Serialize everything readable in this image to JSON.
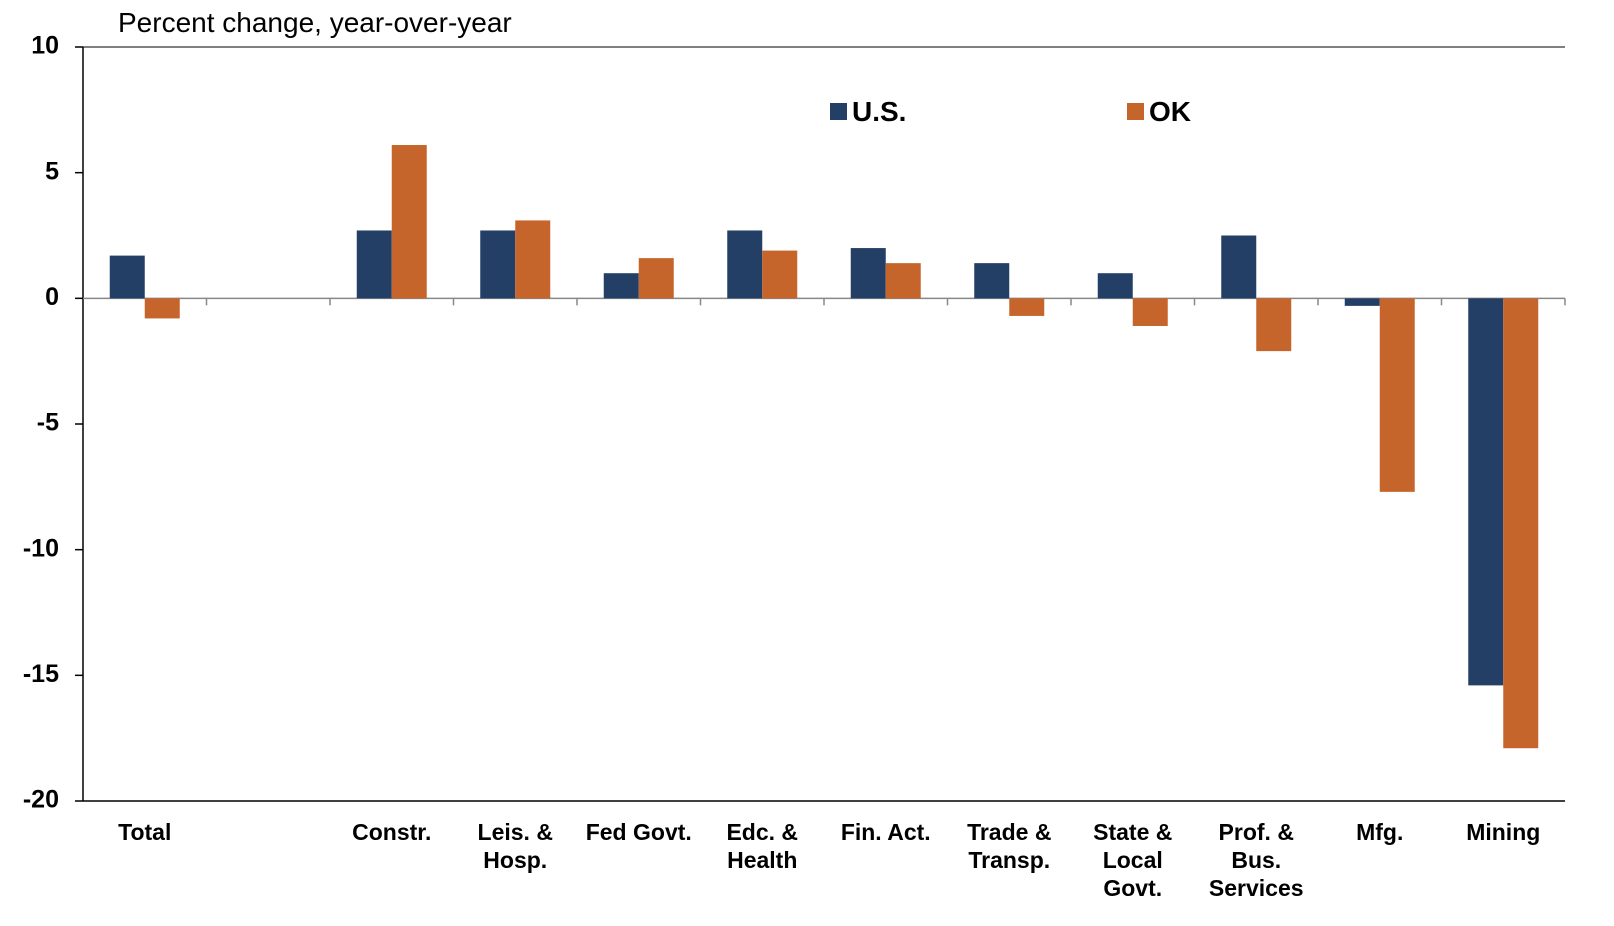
{
  "chart_data": {
    "type": "bar",
    "axis_label": "Percent change, year-over-year",
    "categories": [
      "Total",
      null,
      "Constr.",
      "Leis. &\nHosp.",
      "Fed Govt.",
      "Edc. &\nHealth",
      "Fin. Act.",
      "Trade &\nTransp.",
      "State &\nLocal\nGovt.",
      "Prof. &\nBus.\nServices",
      "Mfg.",
      "Mining"
    ],
    "series": [
      {
        "name": "U.S.",
        "color": "#243f66",
        "values": [
          1.7,
          null,
          2.7,
          2.7,
          1.0,
          2.7,
          2.0,
          1.4,
          1.0,
          2.5,
          -0.3,
          -15.4
        ]
      },
      {
        "name": "OK",
        "color": "#c5652b",
        "values": [
          -0.8,
          null,
          6.1,
          3.1,
          1.6,
          1.9,
          1.4,
          -0.7,
          -1.1,
          -2.1,
          -7.7,
          -17.9
        ]
      }
    ],
    "ylim": [
      -20,
      10
    ],
    "yticks": [
      -20,
      -15,
      -10,
      -5,
      0,
      5,
      10
    ],
    "grid": false
  }
}
